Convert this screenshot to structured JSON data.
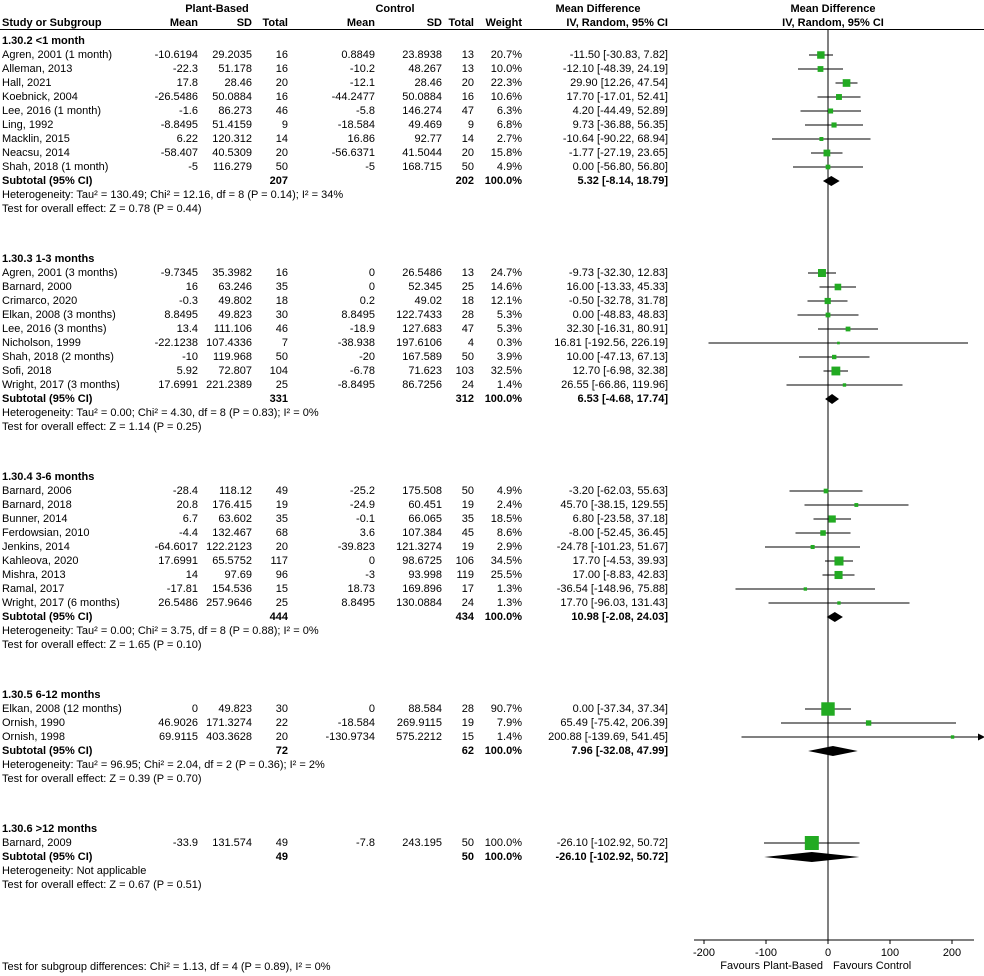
{
  "header": {
    "group_plant": "Plant-Based",
    "group_control": "Control",
    "md_col": "Mean Difference",
    "md_plot": "Mean Difference",
    "col_study": "Study or Subgroup",
    "col_mean": "Mean",
    "col_sd": "SD",
    "col_total": "Total",
    "col_weight": "Weight",
    "col_ci": "IV, Random, 95% CI"
  },
  "axis": {
    "ticks": [
      -200,
      -100,
      0,
      100,
      200
    ],
    "favours_left": "Favours Plant-Based",
    "favours_right": "Favours Control"
  },
  "footer": {
    "subgroup_test": "Test for subgroup differences: Chi² = 1.13, df = 4 (P = 0.89), I² = 0%"
  },
  "colors": {
    "marker": "#22aa22",
    "diamond": "#000000",
    "line": "#000000"
  },
  "chart_data": {
    "type": "forest",
    "effect_measure": "Mean Difference IV, Random, 95% CI",
    "xlim": [
      -222,
      242
    ],
    "x_ticks": [
      -200,
      -100,
      0,
      100,
      200
    ],
    "subgroups": [
      {
        "label": "1.30.2 <1 month",
        "studies": [
          {
            "name": "Agren, 2001 (1 month)",
            "mean1": "-10.6194",
            "sd1": "29.2035",
            "n1": "16",
            "mean2": "0.8849",
            "sd2": "23.8938",
            "n2": "13",
            "weight": "20.7%",
            "ci": "-11.50 [-30.83, 7.82]",
            "est": -11.5,
            "lo": -30.83,
            "hi": 7.82,
            "w": 20.7
          },
          {
            "name": "Alleman, 2013",
            "mean1": "-22.3",
            "sd1": "51.178",
            "n1": "16",
            "mean2": "-10.2",
            "sd2": "48.267",
            "n2": "13",
            "weight": "10.0%",
            "ci": "-12.10 [-48.39, 24.19]",
            "est": -12.1,
            "lo": -48.39,
            "hi": 24.19,
            "w": 10.0
          },
          {
            "name": "Hall, 2021",
            "mean1": "17.8",
            "sd1": "28.46",
            "n1": "20",
            "mean2": "-12.1",
            "sd2": "28.46",
            "n2": "20",
            "weight": "22.3%",
            "ci": "29.90 [12.26, 47.54]",
            "est": 29.9,
            "lo": 12.26,
            "hi": 47.54,
            "w": 22.3
          },
          {
            "name": "Koebnick, 2004",
            "mean1": "-26.5486",
            "sd1": "50.0884",
            "n1": "16",
            "mean2": "-44.2477",
            "sd2": "50.0884",
            "n2": "16",
            "weight": "10.6%",
            "ci": "17.70 [-17.01, 52.41]",
            "est": 17.7,
            "lo": -17.01,
            "hi": 52.41,
            "w": 10.6
          },
          {
            "name": "Lee, 2016 (1 month)",
            "mean1": "-1.6",
            "sd1": "86.273",
            "n1": "46",
            "mean2": "-5.8",
            "sd2": "146.274",
            "n2": "47",
            "weight": "6.3%",
            "ci": "4.20 [-44.49, 52.89]",
            "est": 4.2,
            "lo": -44.49,
            "hi": 52.89,
            "w": 6.3
          },
          {
            "name": "Ling, 1992",
            "mean1": "-8.8495",
            "sd1": "51.4159",
            "n1": "9",
            "mean2": "-18.584",
            "sd2": "49.469",
            "n2": "9",
            "weight": "6.8%",
            "ci": "9.73 [-36.88, 56.35]",
            "est": 9.73,
            "lo": -36.88,
            "hi": 56.35,
            "w": 6.8
          },
          {
            "name": "Macklin, 2015",
            "mean1": "6.22",
            "sd1": "120.312",
            "n1": "14",
            "mean2": "16.86",
            "sd2": "92.77",
            "n2": "14",
            "weight": "2.7%",
            "ci": "-10.64 [-90.22, 68.94]",
            "est": -10.64,
            "lo": -90.22,
            "hi": 68.94,
            "w": 2.7
          },
          {
            "name": "Neacsu, 2014",
            "mean1": "-58.407",
            "sd1": "40.5309",
            "n1": "20",
            "mean2": "-56.6371",
            "sd2": "41.5044",
            "n2": "20",
            "weight": "15.8%",
            "ci": "-1.77 [-27.19, 23.65]",
            "est": -1.77,
            "lo": -27.19,
            "hi": 23.65,
            "w": 15.8
          },
          {
            "name": "Shah, 2018 (1 month)",
            "mean1": "-5",
            "sd1": "116.279",
            "n1": "50",
            "mean2": "-5",
            "sd2": "168.715",
            "n2": "50",
            "weight": "4.9%",
            "ci": "0.00 [-56.80, 56.80]",
            "est": 0,
            "lo": -56.8,
            "hi": 56.8,
            "w": 4.9
          }
        ],
        "subtotal": {
          "label": "Subtotal (95% CI)",
          "n1": "207",
          "n2": "202",
          "weight": "100.0%",
          "ci": "5.32 [-8.14, 18.79]",
          "est": 5.32,
          "lo": -8.14,
          "hi": 18.79
        },
        "heterogeneity": "Heterogeneity: Tau² = 130.49; Chi² = 12.16, df = 8 (P = 0.14); I² = 34%",
        "overall_effect": "Test for overall effect: Z = 0.78 (P = 0.44)"
      },
      {
        "label": "1.30.3 1-3 months",
        "studies": [
          {
            "name": "Agren, 2001 (3 months)",
            "mean1": "-9.7345",
            "sd1": "35.3982",
            "n1": "16",
            "mean2": "0",
            "sd2": "26.5486",
            "n2": "13",
            "weight": "24.7%",
            "ci": "-9.73 [-32.30, 12.83]",
            "est": -9.73,
            "lo": -32.3,
            "hi": 12.83,
            "w": 24.7
          },
          {
            "name": "Barnard, 2000",
            "mean1": "16",
            "sd1": "63.246",
            "n1": "35",
            "mean2": "0",
            "sd2": "52.345",
            "n2": "25",
            "weight": "14.6%",
            "ci": "16.00 [-13.33, 45.33]",
            "est": 16,
            "lo": -13.33,
            "hi": 45.33,
            "w": 14.6
          },
          {
            "name": "Crimarco, 2020",
            "mean1": "-0.3",
            "sd1": "49.802",
            "n1": "18",
            "mean2": "0.2",
            "sd2": "49.02",
            "n2": "18",
            "weight": "12.1%",
            "ci": "-0.50 [-32.78, 31.78]",
            "est": -0.5,
            "lo": -32.78,
            "hi": 31.78,
            "w": 12.1
          },
          {
            "name": "Elkan, 2008 (3 months)",
            "mean1": "8.8495",
            "sd1": "49.823",
            "n1": "30",
            "mean2": "8.8495",
            "sd2": "122.7433",
            "n2": "28",
            "weight": "5.3%",
            "ci": "0.00 [-48.83, 48.83]",
            "est": 0,
            "lo": -48.83,
            "hi": 48.83,
            "w": 5.3
          },
          {
            "name": "Lee, 2016 (3 months)",
            "mean1": "13.4",
            "sd1": "111.106",
            "n1": "46",
            "mean2": "-18.9",
            "sd2": "127.683",
            "n2": "47",
            "weight": "5.3%",
            "ci": "32.30 [-16.31, 80.91]",
            "est": 32.3,
            "lo": -16.31,
            "hi": 80.91,
            "w": 5.3
          },
          {
            "name": "Nicholson, 1999",
            "mean1": "-22.1238",
            "sd1": "107.4336",
            "n1": "7",
            "mean2": "-38.938",
            "sd2": "197.6106",
            "n2": "4",
            "weight": "0.3%",
            "ci": "16.81 [-192.56, 226.19]",
            "est": 16.81,
            "lo": -192.56,
            "hi": 226.19,
            "w": 0.3
          },
          {
            "name": "Shah, 2018 (2 months)",
            "mean1": "-10",
            "sd1": "119.968",
            "n1": "50",
            "mean2": "-20",
            "sd2": "167.589",
            "n2": "50",
            "weight": "3.9%",
            "ci": "10.00 [-47.13, 67.13]",
            "est": 10,
            "lo": -47.13,
            "hi": 67.13,
            "w": 3.9
          },
          {
            "name": "Sofi, 2018",
            "mean1": "5.92",
            "sd1": "72.807",
            "n1": "104",
            "mean2": "-6.78",
            "sd2": "71.623",
            "n2": "103",
            "weight": "32.5%",
            "ci": "12.70 [-6.98, 32.38]",
            "est": 12.7,
            "lo": -6.98,
            "hi": 32.38,
            "w": 32.5
          },
          {
            "name": "Wright, 2017 (3 months)",
            "mean1": "17.6991",
            "sd1": "221.2389",
            "n1": "25",
            "mean2": "-8.8495",
            "sd2": "86.7256",
            "n2": "24",
            "weight": "1.4%",
            "ci": "26.55 [-66.86, 119.96]",
            "est": 26.55,
            "lo": -66.86,
            "hi": 119.96,
            "w": 1.4
          }
        ],
        "subtotal": {
          "label": "Subtotal (95% CI)",
          "n1": "331",
          "n2": "312",
          "weight": "100.0%",
          "ci": "6.53 [-4.68, 17.74]",
          "est": 6.53,
          "lo": -4.68,
          "hi": 17.74
        },
        "heterogeneity": "Heterogeneity: Tau² = 0.00; Chi² = 4.30, df = 8 (P = 0.83); I² = 0%",
        "overall_effect": "Test for overall effect: Z = 1.14 (P = 0.25)"
      },
      {
        "label": "1.30.4 3-6 months",
        "studies": [
          {
            "name": "Barnard, 2006",
            "mean1": "-28.4",
            "sd1": "118.12",
            "n1": "49",
            "mean2": "-25.2",
            "sd2": "175.508",
            "n2": "50",
            "weight": "4.9%",
            "ci": "-3.20 [-62.03, 55.63]",
            "est": -3.2,
            "lo": -62.03,
            "hi": 55.63,
            "w": 4.9
          },
          {
            "name": "Barnard, 2018",
            "mean1": "20.8",
            "sd1": "176.415",
            "n1": "19",
            "mean2": "-24.9",
            "sd2": "60.451",
            "n2": "19",
            "weight": "2.4%",
            "ci": "45.70 [-38.15, 129.55]",
            "est": 45.7,
            "lo": -38.15,
            "hi": 129.55,
            "w": 2.4
          },
          {
            "name": "Bunner, 2014",
            "mean1": "6.7",
            "sd1": "63.602",
            "n1": "35",
            "mean2": "-0.1",
            "sd2": "66.065",
            "n2": "35",
            "weight": "18.5%",
            "ci": "6.80 [-23.58, 37.18]",
            "est": 6.8,
            "lo": -23.58,
            "hi": 37.18,
            "w": 18.5
          },
          {
            "name": "Ferdowsian, 2010",
            "mean1": "-4.4",
            "sd1": "132.467",
            "n1": "68",
            "mean2": "3.6",
            "sd2": "107.384",
            "n2": "45",
            "weight": "8.6%",
            "ci": "-8.00 [-52.45, 36.45]",
            "est": -8,
            "lo": -52.45,
            "hi": 36.45,
            "w": 8.6
          },
          {
            "name": "Jenkins, 2014",
            "mean1": "-64.6017",
            "sd1": "122.2123",
            "n1": "20",
            "mean2": "-39.823",
            "sd2": "121.3274",
            "n2": "19",
            "weight": "2.9%",
            "ci": "-24.78 [-101.23, 51.67]",
            "est": -24.78,
            "lo": -101.23,
            "hi": 51.67,
            "w": 2.9
          },
          {
            "name": "Kahleova, 2020",
            "mean1": "17.6991",
            "sd1": "65.5752",
            "n1": "117",
            "mean2": "0",
            "sd2": "98.6725",
            "n2": "106",
            "weight": "34.5%",
            "ci": "17.70 [-4.53, 39.93]",
            "est": 17.7,
            "lo": -4.53,
            "hi": 39.93,
            "w": 34.5
          },
          {
            "name": "Mishra, 2013",
            "mean1": "14",
            "sd1": "97.69",
            "n1": "96",
            "mean2": "-3",
            "sd2": "93.998",
            "n2": "119",
            "weight": "25.5%",
            "ci": "17.00 [-8.83, 42.83]",
            "est": 17,
            "lo": -8.83,
            "hi": 42.83,
            "w": 25.5
          },
          {
            "name": "Ramal, 2017",
            "mean1": "-17.81",
            "sd1": "154.536",
            "n1": "15",
            "mean2": "18.73",
            "sd2": "169.896",
            "n2": "17",
            "weight": "1.3%",
            "ci": "-36.54 [-148.96, 75.88]",
            "est": -36.54,
            "lo": -148.96,
            "hi": 75.88,
            "w": 1.3
          },
          {
            "name": "Wright, 2017 (6 months)",
            "mean1": "26.5486",
            "sd1": "257.9646",
            "n1": "25",
            "mean2": "8.8495",
            "sd2": "130.0884",
            "n2": "24",
            "weight": "1.3%",
            "ci": "17.70 [-96.03, 131.43]",
            "est": 17.7,
            "lo": -96.03,
            "hi": 131.43,
            "w": 1.3
          }
        ],
        "subtotal": {
          "label": "Subtotal (95% CI)",
          "n1": "444",
          "n2": "434",
          "weight": "100.0%",
          "ci": "10.98 [-2.08, 24.03]",
          "est": 10.98,
          "lo": -2.08,
          "hi": 24.03
        },
        "heterogeneity": "Heterogeneity: Tau² = 0.00; Chi² = 3.75, df = 8 (P = 0.88); I² = 0%",
        "overall_effect": "Test for overall effect: Z = 1.65 (P = 0.10)"
      },
      {
        "label": "1.30.5 6-12 months",
        "studies": [
          {
            "name": "Elkan, 2008 (12 months)",
            "mean1": "0",
            "sd1": "49.823",
            "n1": "30",
            "mean2": "0",
            "sd2": "88.584",
            "n2": "28",
            "weight": "90.7%",
            "ci": "0.00 [-37.34, 37.34]",
            "est": 0,
            "lo": -37.34,
            "hi": 37.34,
            "w": 90.7
          },
          {
            "name": "Ornish, 1990",
            "mean1": "46.9026",
            "sd1": "171.3274",
            "n1": "22",
            "mean2": "-18.584",
            "sd2": "269.9115",
            "n2": "19",
            "weight": "7.9%",
            "ci": "65.49 [-75.42, 206.39]",
            "est": 65.49,
            "lo": -75.42,
            "hi": 206.39,
            "w": 7.9
          },
          {
            "name": "Ornish, 1998",
            "mean1": "69.9115",
            "sd1": "403.3628",
            "n1": "20",
            "mean2": "-130.9734",
            "sd2": "575.2212",
            "n2": "15",
            "weight": "1.4%",
            "ci": "200.88 [-139.69, 541.45]",
            "est": 200.88,
            "lo": -139.69,
            "hi": 541.45,
            "w": 1.4
          }
        ],
        "subtotal": {
          "label": "Subtotal (95% CI)",
          "n1": "72",
          "n2": "62",
          "weight": "100.0%",
          "ci": "7.96 [-32.08, 47.99]",
          "est": 7.96,
          "lo": -32.08,
          "hi": 47.99
        },
        "heterogeneity": "Heterogeneity: Tau² = 96.95; Chi² = 2.04, df = 2 (P = 0.36); I² = 2%",
        "overall_effect": "Test for overall effect: Z = 0.39 (P = 0.70)"
      },
      {
        "label": "1.30.6 >12 months",
        "studies": [
          {
            "name": "Barnard, 2009",
            "mean1": "-33.9",
            "sd1": "131.574",
            "n1": "49",
            "mean2": "-7.8",
            "sd2": "243.195",
            "n2": "50",
            "weight": "100.0%",
            "ci": "-26.10 [-102.92, 50.72]",
            "est": -26.1,
            "lo": -102.92,
            "hi": 50.72,
            "w": 100
          }
        ],
        "subtotal": {
          "label": "Subtotal (95% CI)",
          "n1": "49",
          "n2": "50",
          "weight": "100.0%",
          "ci": "-26.10 [-102.92, 50.72]",
          "est": -26.1,
          "lo": -102.92,
          "hi": 50.72
        },
        "heterogeneity": "Heterogeneity: Not applicable",
        "overall_effect": "Test for overall effect: Z = 0.67 (P = 0.51)"
      }
    ]
  }
}
